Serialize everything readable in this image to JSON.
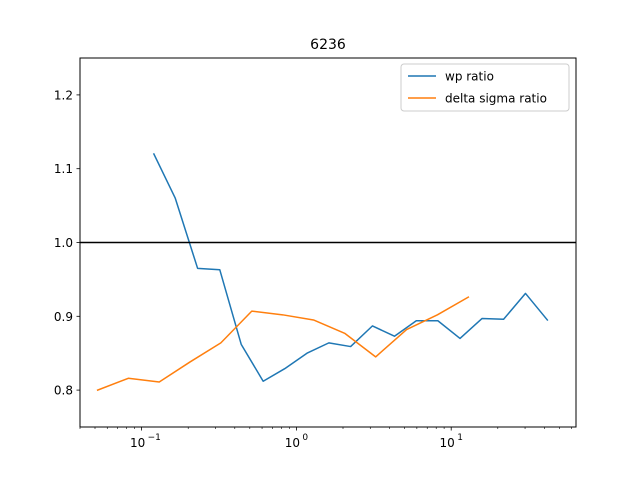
{
  "chart_data": {
    "type": "line",
    "title": "6236",
    "xlabel": "",
    "ylabel": "",
    "xscale": "log",
    "xlim": [
      0.04,
      64
    ],
    "ylim": [
      0.75,
      1.25
    ],
    "grid": false,
    "legend_position": "top-right",
    "x_ticks": [
      {
        "value": 0.1,
        "base": "10",
        "exp": "−1"
      },
      {
        "value": 1,
        "base": "10",
        "exp": "0"
      },
      {
        "value": 10,
        "base": "10",
        "exp": "1"
      }
    ],
    "y_ticks": [
      {
        "value": 0.8,
        "label": "0.8"
      },
      {
        "value": 0.9,
        "label": "0.9"
      },
      {
        "value": 1.0,
        "label": "1.0"
      },
      {
        "value": 1.1,
        "label": "1.1"
      },
      {
        "value": 1.2,
        "label": "1.2"
      }
    ],
    "reference_line": {
      "y": 1.0,
      "color": "#000000"
    },
    "series": [
      {
        "name": "wp ratio",
        "color": "#1f77b4",
        "x": [
          0.12,
          0.165,
          0.23,
          0.32,
          0.44,
          0.61,
          0.84,
          1.17,
          1.62,
          2.24,
          3.1,
          4.3,
          5.95,
          8.2,
          11.4,
          15.8,
          21.8,
          30.2,
          41.8
        ],
        "y": [
          1.12,
          1.06,
          0.965,
          0.963,
          0.862,
          0.812,
          0.829,
          0.85,
          0.864,
          0.859,
          0.887,
          0.873,
          0.894,
          0.894,
          0.87,
          0.897,
          0.896,
          0.931,
          0.895
        ]
      },
      {
        "name": "delta sigma ratio",
        "color": "#ff7f0e",
        "x": [
          0.052,
          0.082,
          0.13,
          0.205,
          0.325,
          0.515,
          0.815,
          1.29,
          2.05,
          3.25,
          5.15,
          8.15,
          12.9
        ],
        "y": [
          0.8,
          0.816,
          0.811,
          0.838,
          0.864,
          0.907,
          0.902,
          0.895,
          0.877,
          0.845,
          0.882,
          0.902,
          0.926
        ]
      }
    ]
  }
}
